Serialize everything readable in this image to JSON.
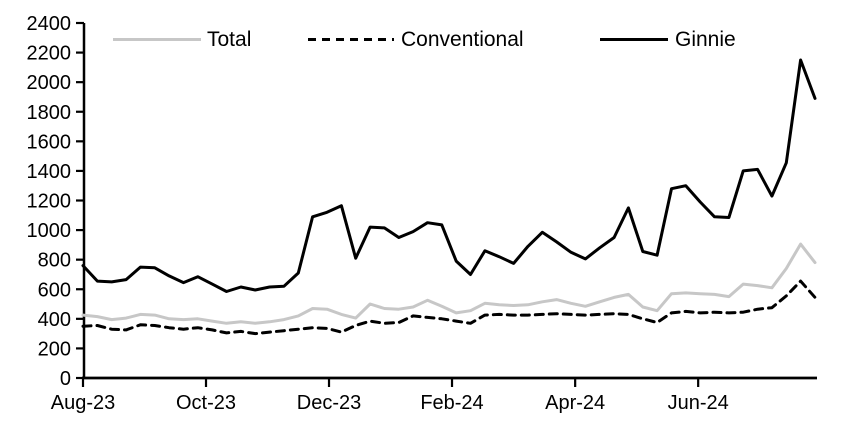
{
  "chart_data": {
    "type": "line",
    "title": "",
    "grid": false,
    "legend_position": "top",
    "x_axis": {
      "tick_labels": [
        "Aug-23",
        "Oct-23",
        "Dec-23",
        "Feb-24",
        "Apr-24",
        "Jun-24"
      ],
      "tick_week_positions": [
        0,
        8.57,
        17.14,
        25.71,
        34.29,
        42.86
      ],
      "frequency": "weekly",
      "range_weeks": 52
    },
    "y_axis": {
      "min": 0,
      "max": 2400,
      "step": 200,
      "tick_labels": [
        "0",
        "200",
        "400",
        "600",
        "800",
        "1000",
        "1200",
        "1400",
        "1600",
        "1800",
        "2000",
        "2200",
        "2400"
      ]
    },
    "series": [
      {
        "name": "Total",
        "color": "#c7c7c7",
        "style": "solid",
        "values": [
          425,
          415,
          395,
          405,
          430,
          425,
          400,
          395,
          400,
          385,
          370,
          380,
          370,
          380,
          395,
          420,
          470,
          465,
          430,
          405,
          500,
          470,
          465,
          480,
          525,
          485,
          440,
          455,
          505,
          495,
          490,
          495,
          515,
          530,
          505,
          485,
          515,
          545,
          565,
          480,
          455,
          570,
          575,
          570,
          565,
          550,
          635,
          625,
          610,
          740,
          905,
          780
        ]
      },
      {
        "name": "Conventional",
        "color": "#000000",
        "style": "dashed",
        "values": [
          350,
          355,
          330,
          325,
          360,
          355,
          340,
          330,
          340,
          325,
          305,
          315,
          300,
          310,
          320,
          330,
          340,
          335,
          310,
          355,
          385,
          370,
          375,
          420,
          410,
          400,
          385,
          370,
          425,
          430,
          425,
          425,
          430,
          435,
          430,
          425,
          430,
          435,
          430,
          400,
          375,
          440,
          450,
          440,
          445,
          440,
          445,
          465,
          475,
          555,
          655,
          545
        ]
      },
      {
        "name": "Ginnie",
        "color": "#000000",
        "style": "solid",
        "values": [
          760,
          655,
          650,
          665,
          750,
          745,
          690,
          645,
          685,
          635,
          585,
          615,
          595,
          615,
          620,
          710,
          1090,
          1120,
          1165,
          810,
          1020,
          1015,
          950,
          990,
          1050,
          1035,
          790,
          700,
          860,
          820,
          775,
          890,
          985,
          920,
          850,
          805,
          880,
          950,
          1150,
          855,
          830,
          1280,
          1300,
          1190,
          1090,
          1085,
          1400,
          1410,
          1230,
          1455,
          2150,
          1890
        ]
      }
    ]
  }
}
